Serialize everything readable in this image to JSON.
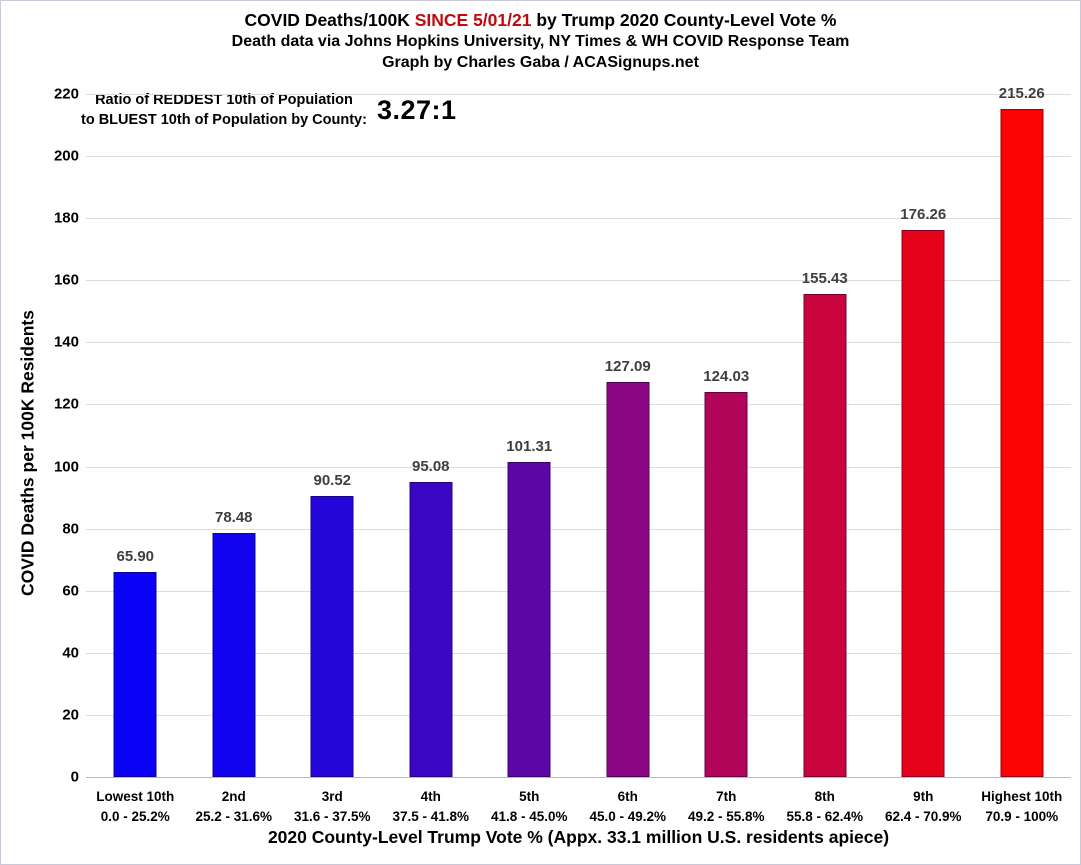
{
  "header": {
    "title_part1": "COVID Deaths/100K ",
    "title_highlight": "SINCE 5/01/21",
    "title_part2": " by Trump 2020 County-Level Vote %",
    "highlight_color": "#c00a0e",
    "subtitle1": "Death data via Johns Hopkins University, NY Times & WH COVID Response Team",
    "subtitle2": "Graph by Charles Gaba / ACASignups.net"
  },
  "annotation": {
    "line1": "Ratio of REDDEST 10th of Population",
    "line2": "to BLUEST 10th of Population by County:",
    "ratio": "3.27:1"
  },
  "chart_data": {
    "type": "bar",
    "title": "COVID Deaths/100K SINCE 5/01/21 by Trump 2020 County-Level Vote %",
    "xlabel": "2020 County-Level Trump Vote % (Appx. 33.1 million U.S. residents apiece)",
    "ylabel": "COVID Deaths per 100K Residents",
    "ylim": [
      0,
      220
    ],
    "ytick_step": 20,
    "grid": true,
    "legend": false,
    "categories": [
      "Lowest 10th",
      "2nd",
      "3rd",
      "4th",
      "5th",
      "6th",
      "7th",
      "8th",
      "9th",
      "Highest 10th"
    ],
    "category_ranges": [
      "0.0 - 25.2%",
      "25.2 - 31.6%",
      "31.6 - 37.5%",
      "37.5 - 41.8%",
      "41.8 - 45.0%",
      "45.0 - 49.2%",
      "49.2 - 55.8%",
      "55.8 - 62.4%",
      "62.4 - 70.9%",
      "70.9 - 100%"
    ],
    "values": [
      65.9,
      78.48,
      90.52,
      95.08,
      101.31,
      127.09,
      124.03,
      155.43,
      176.26,
      215.26
    ],
    "value_labels": [
      "65.90",
      "78.48",
      "90.52",
      "95.08",
      "101.31",
      "127.09",
      "124.03",
      "155.43",
      "176.26",
      "215.26"
    ],
    "bar_colors": [
      "#0a02f5",
      "#1103ee",
      "#2405d8",
      "#3b06c3",
      "#5a07a5",
      "#8b0683",
      "#b00558",
      "#c9043c",
      "#e5031c",
      "#fb0203"
    ],
    "value_label_color": "#3f3f3f",
    "grid_color": "#dcdcdc",
    "axis_line_color": "#b9b9b9"
  }
}
